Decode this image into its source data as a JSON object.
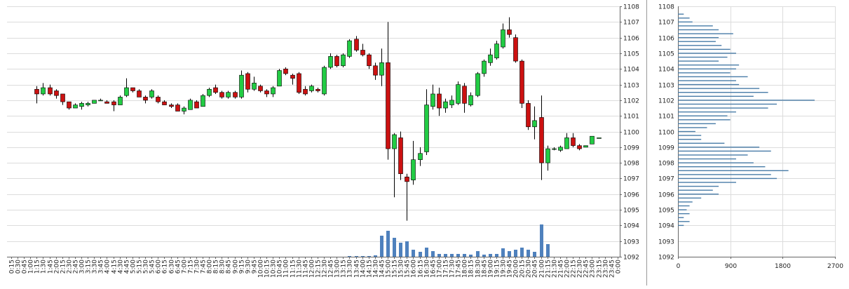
{
  "chart_data": [
    {
      "type": "candlestick",
      "categories": [
        "0:15",
        "0:30",
        "0:45",
        "1:00",
        "1:15",
        "1:30",
        "1:45",
        "2:00",
        "2:15",
        "2:30",
        "2:45",
        "3:00",
        "3:15",
        "3:30",
        "3:45",
        "4:00",
        "4:15",
        "4:30",
        "4:45",
        "5:00",
        "5:15",
        "5:30",
        "5:45",
        "6:00",
        "6:15",
        "6:30",
        "6:45",
        "7:00",
        "7:15",
        "7:30",
        "7:45",
        "8:00",
        "8:15",
        "8:30",
        "8:45",
        "9:00",
        "9:15",
        "9:30",
        "9:45",
        "10:00",
        "10:15",
        "10:30",
        "10:45",
        "11:00",
        "11:15",
        "11:30",
        "11:45",
        "12:00",
        "12:15",
        "12:30",
        "12:45",
        "13:00",
        "13:15",
        "13:30",
        "13:45",
        "14:00",
        "14:15",
        "14:30",
        "14:45",
        "15:00",
        "15:15",
        "15:30",
        "15:45",
        "16:00",
        "16:15",
        "16:30",
        "16:45",
        "17:00",
        "17:15",
        "17:30",
        "17:45",
        "18:00",
        "18:15",
        "18:30",
        "18:45",
        "19:00",
        "19:15",
        "19:30",
        "19:45",
        "20:00",
        "20:15",
        "20:30",
        "20:45",
        "21:00",
        "21:15",
        "21:30",
        "21:45",
        "22:00",
        "22:15",
        "22:30",
        "22:45",
        "23:00",
        "23:15",
        "23:30",
        "23:45",
        "0:00"
      ],
      "open": [
        null,
        null,
        null,
        null,
        1102.7,
        1102.4,
        1102.8,
        1102.6,
        1102.4,
        1101.9,
        1101.5,
        1101.6,
        1101.7,
        1101.8,
        1102.0,
        1101.9,
        1101.9,
        1101.7,
        1102.3,
        1102.8,
        1102.6,
        1102.2,
        1102.2,
        1102.2,
        1101.9,
        1101.7,
        1101.7,
        1101.3,
        1101.4,
        1101.9,
        1101.6,
        1102.3,
        1102.8,
        1102.5,
        1102.2,
        1102.5,
        1102.2,
        1103.7,
        1102.7,
        1102.9,
        1102.6,
        1102.4,
        1102.9,
        1104.0,
        1103.6,
        1103.7,
        1102.7,
        1102.6,
        1102.7,
        1102.4,
        1104.1,
        1104.8,
        1104.2,
        1104.8,
        1105.9,
        1105.2,
        1104.9,
        1104.2,
        1103.6,
        1104.4,
        1098.9,
        1099.6,
        1097.1,
        1096.9,
        1098.2,
        1098.7,
        1101.6,
        1102.4,
        1101.5,
        1101.7,
        1101.8,
        1102.9,
        1101.7,
        1102.3,
        1103.7,
        1104.4,
        1104.7,
        1105.4,
        1106.5,
        1106.0,
        1104.5,
        1101.8,
        1100.3,
        1100.9,
        1098.0,
        1098.9,
        1098.8,
        1098.9,
        1099.6,
        1099.1,
        1099.0,
        1099.2,
        1099.6,
        null,
        null,
        null
      ],
      "high": [
        null,
        null,
        null,
        null,
        1102.9,
        1103.1,
        1103.0,
        1102.7,
        1102.4,
        1101.9,
        1101.8,
        1101.9,
        1101.9,
        1102.0,
        1102.1,
        1102.0,
        1102.0,
        1102.3,
        1103.4,
        1102.8,
        1102.7,
        1102.3,
        1102.7,
        1102.3,
        1102.0,
        1101.8,
        1101.8,
        1101.6,
        1102.1,
        1102.0,
        1102.4,
        1102.8,
        1103.0,
        1102.6,
        1102.6,
        1102.6,
        1103.9,
        1103.8,
        1103.5,
        1103.0,
        1102.7,
        1102.9,
        1104.0,
        1104.1,
        1103.7,
        1103.8,
        1102.9,
        1103.0,
        1102.8,
        1104.2,
        1105.0,
        1104.9,
        1105.0,
        1105.9,
        1106.1,
        1105.6,
        1105.0,
        1104.4,
        1105.3,
        1107.0,
        1099.9,
        1100.0,
        1097.3,
        1099.4,
        1099.0,
        1102.7,
        1103.0,
        1102.8,
        1102.1,
        1102.3,
        1103.2,
        1103.1,
        1102.5,
        1103.8,
        1104.6,
        1105.3,
        1105.8,
        1106.9,
        1107.3,
        1106.2,
        1104.6,
        1102.0,
        1101.6,
        1102.3,
        1099.1,
        1099.0,
        1099.1,
        1099.9,
        1099.9,
        1099.2,
        1099.1,
        1099.7,
        1099.6,
        null,
        null,
        null
      ],
      "low": [
        null,
        null,
        null,
        null,
        1101.8,
        1102.3,
        1102.3,
        1102.1,
        1101.7,
        1101.4,
        1101.5,
        1101.4,
        1101.6,
        1101.8,
        1102.0,
        1101.8,
        1101.3,
        1101.7,
        1102.2,
        1102.5,
        1102.2,
        1101.8,
        1102.1,
        1101.8,
        1101.7,
        1101.5,
        1101.3,
        1101.1,
        1101.4,
        1101.5,
        1101.6,
        1102.2,
        1102.4,
        1102.1,
        1102.1,
        1102.1,
        1102.1,
        1102.5,
        1102.6,
        1102.5,
        1102.2,
        1102.2,
        1102.9,
        1103.6,
        1103.0,
        1102.4,
        1102.3,
        1102.5,
        1102.5,
        1102.3,
        1104.0,
        1104.1,
        1104.1,
        1104.7,
        1105.1,
        1104.8,
        1104.0,
        1103.3,
        1102.9,
        1098.2,
        1095.8,
        1096.9,
        1094.3,
        1096.6,
        1097.8,
        1098.5,
        1101.4,
        1101.0,
        1101.2,
        1101.5,
        1101.7,
        1101.2,
        1101.6,
        1102.2,
        1103.5,
        1104.2,
        1104.6,
        1105.3,
        1106.0,
        1104.4,
        1101.5,
        1100.1,
        1099.5,
        1096.9,
        1097.5,
        1098.8,
        1098.7,
        1098.9,
        1099.0,
        1098.8,
        1099.0,
        1099.2,
        1099.6,
        null,
        null,
        null
      ],
      "close": [
        null,
        null,
        null,
        null,
        1102.4,
        1102.8,
        1102.4,
        1102.3,
        1101.9,
        1101.5,
        1101.7,
        1101.8,
        1101.8,
        1102.0,
        1102.0,
        1101.8,
        1101.7,
        1102.2,
        1102.8,
        1102.6,
        1102.2,
        1102.0,
        1102.6,
        1101.9,
        1101.7,
        1101.6,
        1101.3,
        1101.5,
        1102.0,
        1101.5,
        1102.3,
        1102.7,
        1102.5,
        1102.2,
        1102.5,
        1102.2,
        1103.6,
        1102.7,
        1103.1,
        1102.6,
        1102.4,
        1102.8,
        1103.9,
        1103.7,
        1103.4,
        1102.5,
        1102.4,
        1102.9,
        1102.6,
        1104.1,
        1104.8,
        1104.2,
        1104.9,
        1105.8,
        1105.2,
        1104.9,
        1104.2,
        1103.6,
        1104.4,
        1098.9,
        1099.8,
        1097.3,
        1096.8,
        1098.2,
        1098.6,
        1101.7,
        1102.4,
        1101.5,
        1101.9,
        1102.0,
        1103.0,
        1101.8,
        1102.3,
        1103.7,
        1104.5,
        1104.9,
        1105.6,
        1106.5,
        1106.2,
        1104.5,
        1101.8,
        1100.3,
        1100.7,
        1098.0,
        1098.9,
        1098.9,
        1099.0,
        1099.6,
        1099.1,
        1098.9,
        1099.1,
        1099.7,
        1099.6,
        null,
        null,
        null
      ],
      "volume": [
        null,
        null,
        null,
        null,
        0,
        0,
        0,
        0,
        0,
        0,
        0,
        0,
        0,
        0,
        0,
        0,
        0,
        0,
        0,
        0,
        0,
        0,
        0,
        0,
        0,
        0,
        0,
        0,
        0,
        0,
        0,
        0,
        0,
        0,
        0,
        0,
        0,
        0,
        0,
        0,
        0,
        0,
        0,
        0,
        0,
        0,
        0,
        0,
        0,
        0,
        0,
        0,
        0,
        1,
        1,
        1,
        1,
        2,
        30,
        37,
        27,
        20,
        22,
        10,
        7,
        13,
        8,
        4,
        4,
        4,
        4,
        4,
        3,
        8,
        3,
        4,
        4,
        12,
        8,
        10,
        13,
        10,
        7,
        46,
        18,
        0,
        0,
        0,
        0,
        0,
        0,
        0,
        0,
        null,
        null,
        null
      ],
      "up_color": "#22cc44",
      "down_color": "#cc1111",
      "volume_color": "#4f81bd",
      "ylim": [
        1092,
        1108
      ],
      "yticks": [
        1092,
        1093,
        1094,
        1095,
        1096,
        1097,
        1098,
        1099,
        1100,
        1101,
        1102,
        1103,
        1104,
        1105,
        1106,
        1107,
        1108
      ],
      "grid": true
    },
    {
      "type": "barh",
      "y": [
        1107.5,
        1107.25,
        1107.0,
        1106.75,
        1106.5,
        1106.25,
        1106.0,
        1105.75,
        1105.5,
        1105.25,
        1105.0,
        1104.75,
        1104.5,
        1104.25,
        1104.0,
        1103.75,
        1103.5,
        1103.25,
        1103.0,
        1102.75,
        1102.5,
        1102.25,
        1102.0,
        1101.75,
        1101.5,
        1101.25,
        1101.0,
        1100.75,
        1100.5,
        1100.25,
        1100.0,
        1099.75,
        1099.5,
        1099.25,
        1099.0,
        1098.75,
        1098.5,
        1098.25,
        1098.0,
        1097.75,
        1097.5,
        1097.25,
        1097.0,
        1096.75,
        1096.5,
        1096.25,
        1096.0,
        1095.75,
        1095.5,
        1095.25,
        1095.0,
        1094.75,
        1094.5,
        1094.25,
        1094.0
      ],
      "values": [
        100,
        200,
        250,
        600,
        700,
        950,
        700,
        650,
        750,
        900,
        1000,
        850,
        700,
        1050,
        1000,
        900,
        1200,
        1000,
        1050,
        1400,
        1550,
        1300,
        2350,
        1700,
        1550,
        1000,
        850,
        900,
        650,
        500,
        300,
        400,
        400,
        800,
        1400,
        1600,
        1200,
        1000,
        1300,
        1500,
        1900,
        1600,
        1700,
        1000,
        700,
        600,
        700,
        400,
        250,
        200,
        150,
        200,
        100,
        200,
        100
      ],
      "color": "#4a7da8",
      "xlim": [
        0,
        2700
      ],
      "xticks": [
        0,
        900,
        1800,
        2700
      ],
      "ylim": [
        1092,
        1108
      ],
      "yticks": [
        1092,
        1093,
        1094,
        1095,
        1096,
        1097,
        1098,
        1099,
        1100,
        1101,
        1102,
        1103,
        1104,
        1105,
        1106,
        1107,
        1108
      ],
      "grid": true
    }
  ]
}
